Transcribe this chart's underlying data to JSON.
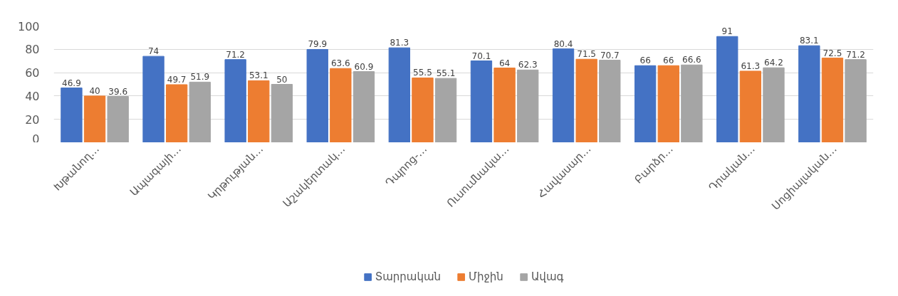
{
  "chart_data": {
    "type": "bar",
    "categories": [
      "Խթանող…",
      "Ապագայի…",
      "Կրթության…",
      "Աշակերտակ…",
      "Դպրոց-…",
      "Ուսումնակա…",
      "Հավասար…",
      "Բարձր…",
      "Դրական…",
      "Սոցիալական…"
    ],
    "series": [
      {
        "name": "Տարրական",
        "color": "#4472c4",
        "values": [
          46.9,
          74,
          71.2,
          79.9,
          81.3,
          70.1,
          80.4,
          66,
          91,
          83.1
        ]
      },
      {
        "name": "Միջին",
        "color": "#ed7d31",
        "values": [
          40,
          49.7,
          53.1,
          63.6,
          55.5,
          64,
          71.5,
          66,
          61.3,
          72.5
        ]
      },
      {
        "name": "Ավագ",
        "color": "#a5a5a5",
        "values": [
          39.6,
          51.9,
          50,
          60.9,
          55.1,
          62.3,
          70.7,
          66.6,
          64.2,
          71.2
        ]
      }
    ],
    "ylim": [
      0,
      100
    ],
    "yticks": [
      0,
      20,
      40,
      60,
      80,
      100
    ],
    "grid": "y",
    "legend": "bottom",
    "data_labels": true
  }
}
